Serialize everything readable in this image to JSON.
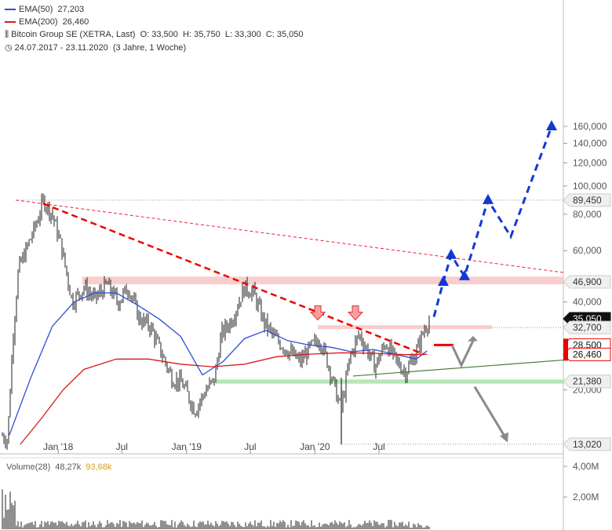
{
  "legend": {
    "ema50_label": "EMA(50)",
    "ema50_value": "27,203",
    "ema200_label": "EMA(200)",
    "ema200_value": "26,460",
    "title": "Bitcoin Group SE (XETRA, Last)",
    "ohlc": "O: 33,500  H: 35,750  L: 33,300  C: 35,050",
    "range": "24.07.2017 - 23.11.2020",
    "range_note": "(3 Jahre, 1 Woche)"
  },
  "volume": {
    "label": "Volume(28)",
    "value1": "48,27k",
    "value2": "93,68k"
  },
  "colors": {
    "ema50": "#2e4cd6",
    "ema200": "#d61a1a",
    "support": "#8bd68b",
    "resistance": "#f4a0a0",
    "forecast": "#1238d4"
  },
  "chart_data": {
    "type": "line",
    "title": "Bitcoin Group SE (XETRA, Last)",
    "yscale": "log",
    "ylim": [
      13000,
      170000
    ],
    "y_ticks": [
      "160,000",
      "140,000",
      "120,000",
      "100,000",
      "80,000",
      "60,000",
      "40,000",
      "20,000"
    ],
    "x_ticks": [
      "Jan '18",
      "Jul",
      "Jan '19",
      "Jul",
      "Jan '20",
      "Jul"
    ],
    "level_labels": [
      {
        "text": "89,450",
        "value": 89450,
        "style": "plain"
      },
      {
        "text": "46,900",
        "value": 46900,
        "style": "plain"
      },
      {
        "text": "35,050",
        "value": 35050,
        "style": "dark"
      },
      {
        "text": "32,700",
        "value": 32700,
        "style": "plain"
      },
      {
        "text": "28,500",
        "value": 28500,
        "style": "red"
      },
      {
        "text": "26,460",
        "value": 26460,
        "style": "red"
      },
      {
        "text": "21,380",
        "value": 21380,
        "style": "plain"
      },
      {
        "text": "13,020",
        "value": 13020,
        "style": "plain"
      }
    ],
    "series": [
      {
        "name": "EMA(50)",
        "color": "#2e4cd6",
        "x": [
          "2017-08",
          "2017-10",
          "2017-12",
          "2018-02",
          "2018-04",
          "2018-06",
          "2018-08",
          "2018-10",
          "2018-12",
          "2019-02",
          "2019-04",
          "2019-06",
          "2019-08",
          "2019-10",
          "2019-12",
          "2020-02",
          "2020-04",
          "2020-06",
          "2020-08",
          "2020-10",
          "2020-11"
        ],
        "values": [
          14000,
          22000,
          33000,
          40000,
          43000,
          43000,
          39000,
          35000,
          30500,
          22500,
          25000,
          30000,
          32000,
          29500,
          28500,
          28000,
          27000,
          27500,
          26500,
          25500,
          27203
        ]
      },
      {
        "name": "EMA(200)",
        "color": "#d61a1a",
        "x": [
          "2017-09",
          "2017-11",
          "2018-01",
          "2018-03",
          "2018-06",
          "2018-09",
          "2018-12",
          "2019-03",
          "2019-06",
          "2019-09",
          "2019-12",
          "2020-03",
          "2020-06",
          "2020-09",
          "2020-11"
        ],
        "values": [
          13000,
          16000,
          20000,
          23500,
          25500,
          25500,
          24500,
          24000,
          24500,
          26000,
          26500,
          26800,
          26700,
          26400,
          26460
        ]
      }
    ],
    "volume_axis": [
      "4,00M",
      "2,00M"
    ]
  }
}
